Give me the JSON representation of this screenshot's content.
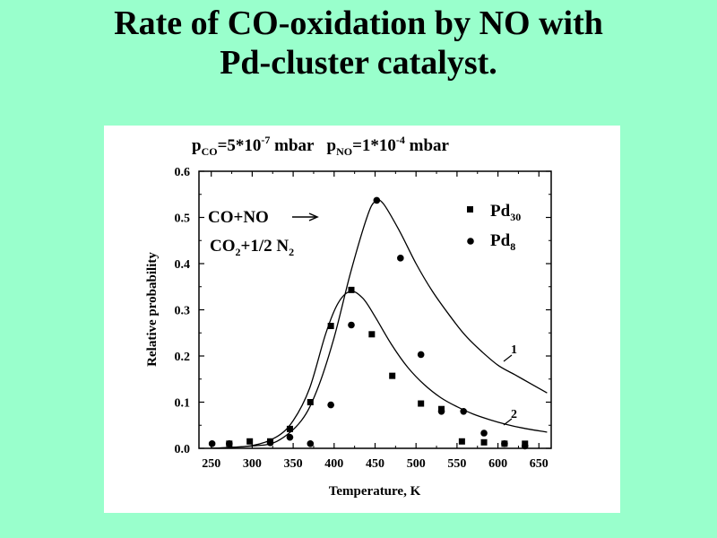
{
  "slide": {
    "title_line1": "Rate of CO-oxidation by NO  with",
    "title_line2": "Pd-cluster catalyst."
  },
  "chart_data": {
    "type": "scatter",
    "title": "",
    "conditions": {
      "pco_p": "p",
      "pco_sub": "CO",
      "pco_val": "=5*10",
      "pco_exp": "-7",
      "pco_unit": " mbar",
      "pno_p": "p",
      "pno_sub": "NO",
      "pno_val": "=1*10",
      "pno_exp": "-4",
      "pno_unit": " mbar"
    },
    "xlabel": "Temperature, K",
    "ylabel": "Relative probability",
    "xlim": [
      235,
      665
    ],
    "ylim": [
      0,
      0.6
    ],
    "xticks": [
      "250",
      "300",
      "350",
      "400",
      "450",
      "500",
      "550",
      "600",
      "650"
    ],
    "xtick_values": [
      250,
      300,
      350,
      400,
      450,
      500,
      550,
      600,
      650
    ],
    "yticks": [
      "0.0",
      "0.1",
      "0.2",
      "0.3",
      "0.4",
      "0.5",
      "0.6"
    ],
    "ytick_values": [
      0.0,
      0.1,
      0.2,
      0.3,
      0.4,
      0.5,
      0.6
    ],
    "grid": false,
    "reaction": {
      "line1": "CO+NO",
      "line2_a": "CO",
      "line2_sub": "2",
      "line2_b": "+1/2 N",
      "line2_sub2": "2"
    },
    "legend": {
      "position": "top-right",
      "entries": [
        {
          "base": "Pd",
          "sub": "30",
          "marker": "square"
        },
        {
          "base": "Pd",
          "sub": "8",
          "marker": "circle"
        }
      ]
    },
    "series": [
      {
        "name": "Pd30",
        "marker": "square",
        "x": [
          272,
          297,
          322,
          346,
          371,
          396,
          421,
          446,
          471,
          506,
          531,
          556,
          583,
          608,
          633
        ],
        "y": [
          0.01,
          0.015,
          0.015,
          0.042,
          0.1,
          0.265,
          0.343,
          0.247,
          0.157,
          0.097,
          0.085,
          0.015,
          0.013,
          0.01,
          0.01
        ]
      },
      {
        "name": "Pd8",
        "marker": "circle",
        "x": [
          251,
          272,
          322,
          346,
          371,
          396,
          421,
          452,
          481,
          506,
          531,
          558,
          583,
          608,
          633
        ],
        "y": [
          0.01,
          0.01,
          0.012,
          0.024,
          0.01,
          0.094,
          0.267,
          0.537,
          0.412,
          0.203,
          0.08,
          0.08,
          0.033,
          0.01,
          0.005
        ]
      }
    ],
    "fit_curves": [
      {
        "label": "1",
        "x": [
          250,
          300,
          330,
          360,
          380,
          400,
          420,
          440,
          450,
          460,
          480,
          500,
          520,
          540,
          560,
          580,
          600,
          620,
          640,
          660
        ],
        "y": [
          0.0,
          0.005,
          0.015,
          0.06,
          0.13,
          0.24,
          0.38,
          0.5,
          0.535,
          0.53,
          0.47,
          0.4,
          0.34,
          0.29,
          0.245,
          0.21,
          0.18,
          0.16,
          0.14,
          0.12
        ]
      },
      {
        "label": "2",
        "x": [
          250,
          300,
          330,
          350,
          370,
          390,
          405,
          420,
          435,
          450,
          470,
          490,
          510,
          530,
          550,
          570,
          590,
          610,
          630,
          660
        ],
        "y": [
          0.0,
          0.006,
          0.025,
          0.06,
          0.13,
          0.25,
          0.315,
          0.34,
          0.325,
          0.285,
          0.225,
          0.175,
          0.138,
          0.11,
          0.09,
          0.074,
          0.062,
          0.052,
          0.044,
          0.035
        ]
      }
    ]
  }
}
